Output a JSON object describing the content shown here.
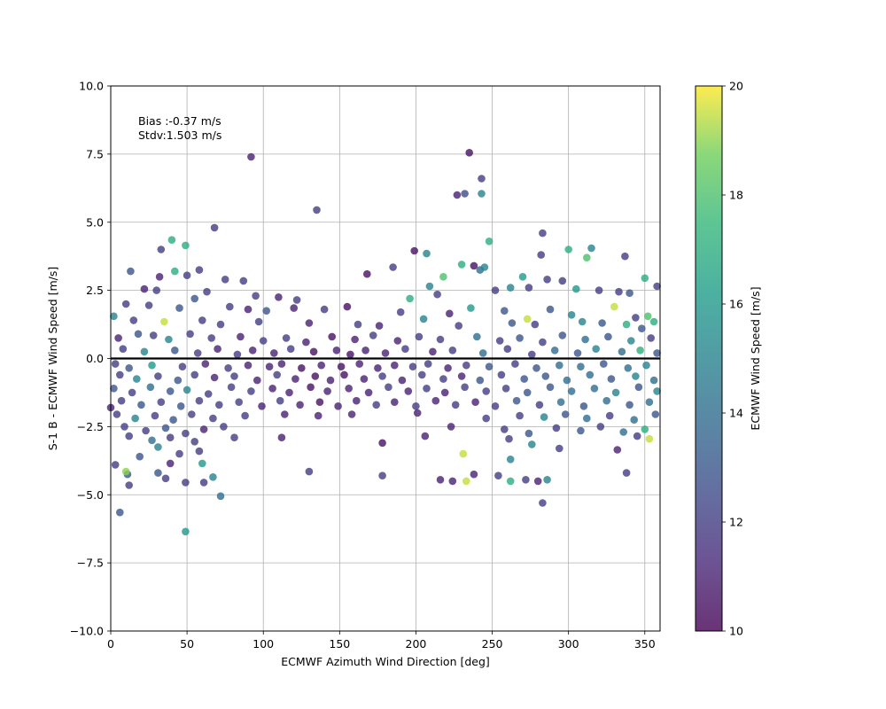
{
  "chart_data": {
    "type": "scatter",
    "xlabel": "ECMWF Azimuth Wind Direction [deg]",
    "ylabel": "S-1 B - ECMWF Wind Speed [m/s]",
    "xlim": [
      0,
      360
    ],
    "ylim": [
      -10,
      10
    ],
    "xticks": [
      0,
      50,
      100,
      150,
      200,
      250,
      300,
      350
    ],
    "yticks": [
      -10.0,
      -7.5,
      -5.0,
      -2.5,
      0.0,
      2.5,
      5.0,
      7.5,
      10.0
    ],
    "xtick_labels": [
      "0",
      "50",
      "100",
      "150",
      "200",
      "250",
      "300",
      "350"
    ],
    "ytick_labels": [
      "−10.0",
      "−7.5",
      "−5.0",
      "−2.5",
      "0.0",
      "2.5",
      "5.0",
      "7.5",
      "10.0"
    ],
    "grid": true,
    "zero_line": 0,
    "annotation": [
      "Bias :-0.37 m/s",
      "Stdv:1.503 m/s"
    ],
    "colorbar": {
      "label": "ECMWF Wind Speed [m/s]",
      "min": 10,
      "max": 20,
      "ticks": [
        10,
        12,
        14,
        16,
        18,
        20
      ],
      "colormap": "viridis",
      "alpha": 0.8
    },
    "points": [
      [
        92,
        7.4,
        11
      ],
      [
        235,
        7.55,
        10.5
      ],
      [
        243,
        6.6,
        12
      ],
      [
        232,
        6.05,
        12.5
      ],
      [
        227,
        6.0,
        11
      ],
      [
        243,
        6.05,
        15
      ],
      [
        135,
        5.45,
        12
      ],
      [
        68,
        4.8,
        12
      ],
      [
        283,
        4.6,
        12
      ],
      [
        248,
        4.3,
        17
      ],
      [
        40,
        4.35,
        17
      ],
      [
        49,
        4.15,
        17
      ],
      [
        33,
        4.0,
        12
      ],
      [
        199,
        3.95,
        10.5
      ],
      [
        300,
        4.0,
        17
      ],
      [
        315,
        4.05,
        15
      ],
      [
        337,
        3.75,
        12
      ],
      [
        282,
        3.8,
        12
      ],
      [
        312,
        3.7,
        18
      ],
      [
        207,
        3.85,
        15
      ],
      [
        185,
        3.35,
        12
      ],
      [
        230,
        3.45,
        17
      ],
      [
        238,
        3.4,
        10.5
      ],
      [
        242,
        3.25,
        14
      ],
      [
        245,
        3.35,
        15
      ],
      [
        58,
        3.25,
        12
      ],
      [
        42,
        3.2,
        17
      ],
      [
        13,
        3.2,
        13
      ],
      [
        32,
        3.0,
        11
      ],
      [
        168,
        3.1,
        10.5
      ],
      [
        218,
        3.0,
        18
      ],
      [
        50,
        3.05,
        12
      ],
      [
        75,
        2.9,
        12
      ],
      [
        87,
        2.85,
        12
      ],
      [
        270,
        3.0,
        16
      ],
      [
        286,
        2.9,
        12
      ],
      [
        296,
        2.85,
        12
      ],
      [
        350,
        2.95,
        17
      ],
      [
        358,
        2.65,
        12
      ],
      [
        22,
        2.55,
        11
      ],
      [
        30,
        2.5,
        12
      ],
      [
        55,
        2.2,
        13
      ],
      [
        63,
        2.45,
        12
      ],
      [
        95,
        2.3,
        12
      ],
      [
        110,
        2.25,
        11
      ],
      [
        122,
        2.15,
        12
      ],
      [
        196,
        2.2,
        17
      ],
      [
        209,
        2.65,
        15
      ],
      [
        214,
        2.35,
        12
      ],
      [
        252,
        2.5,
        12
      ],
      [
        262,
        2.6,
        15
      ],
      [
        274,
        2.6,
        12
      ],
      [
        305,
        2.55,
        16
      ],
      [
        320,
        2.5,
        12
      ],
      [
        333,
        2.45,
        12
      ],
      [
        340,
        2.4,
        13
      ],
      [
        10,
        2.0,
        12
      ],
      [
        25,
        1.95,
        12
      ],
      [
        45,
        1.85,
        13
      ],
      [
        78,
        1.9,
        12
      ],
      [
        90,
        1.8,
        11
      ],
      [
        102,
        1.75,
        13
      ],
      [
        120,
        1.85,
        11
      ],
      [
        140,
        1.8,
        12
      ],
      [
        155,
        1.9,
        10.5
      ],
      [
        190,
        1.7,
        12
      ],
      [
        222,
        1.65,
        11
      ],
      [
        236,
        1.85,
        16
      ],
      [
        258,
        1.75,
        13
      ],
      [
        273,
        1.45,
        19.5
      ],
      [
        288,
        1.8,
        13
      ],
      [
        302,
        1.6,
        15
      ],
      [
        330,
        1.9,
        19.5
      ],
      [
        344,
        1.5,
        12
      ],
      [
        352,
        1.55,
        18
      ],
      [
        2,
        1.55,
        15
      ],
      [
        15,
        1.4,
        12
      ],
      [
        35,
        1.35,
        19.5
      ],
      [
        60,
        1.4,
        12
      ],
      [
        72,
        1.25,
        12
      ],
      [
        97,
        1.35,
        12
      ],
      [
        130,
        1.3,
        11
      ],
      [
        162,
        1.25,
        12
      ],
      [
        176,
        1.2,
        11
      ],
      [
        205,
        1.45,
        15
      ],
      [
        228,
        1.2,
        12
      ],
      [
        263,
        1.3,
        13
      ],
      [
        278,
        1.25,
        12
      ],
      [
        309,
        1.35,
        15
      ],
      [
        322,
        1.3,
        13
      ],
      [
        338,
        1.25,
        17
      ],
      [
        348,
        1.1,
        13
      ],
      [
        356,
        1.35,
        17
      ],
      [
        5,
        0.75,
        11
      ],
      [
        18,
        0.9,
        13
      ],
      [
        28,
        0.85,
        12
      ],
      [
        38,
        0.7,
        15
      ],
      [
        52,
        0.9,
        12
      ],
      [
        66,
        0.75,
        12
      ],
      [
        85,
        0.8,
        11
      ],
      [
        100,
        0.65,
        12
      ],
      [
        115,
        0.75,
        12
      ],
      [
        128,
        0.6,
        11
      ],
      [
        145,
        0.8,
        10.5
      ],
      [
        160,
        0.7,
        11
      ],
      [
        172,
        0.85,
        12
      ],
      [
        188,
        0.65,
        11
      ],
      [
        202,
        0.8,
        12
      ],
      [
        216,
        0.7,
        12
      ],
      [
        240,
        0.8,
        14
      ],
      [
        255,
        0.65,
        12
      ],
      [
        268,
        0.75,
        13
      ],
      [
        283,
        0.6,
        12
      ],
      [
        296,
        0.85,
        13
      ],
      [
        311,
        0.7,
        14
      ],
      [
        326,
        0.8,
        13
      ],
      [
        341,
        0.65,
        15
      ],
      [
        354,
        0.75,
        12
      ],
      [
        8,
        0.35,
        12
      ],
      [
        22,
        0.25,
        15
      ],
      [
        42,
        0.3,
        13
      ],
      [
        57,
        0.2,
        12
      ],
      [
        70,
        0.35,
        11
      ],
      [
        83,
        0.15,
        12
      ],
      [
        93,
        0.3,
        11
      ],
      [
        107,
        0.2,
        11
      ],
      [
        118,
        0.35,
        12
      ],
      [
        133,
        0.25,
        10.5
      ],
      [
        148,
        0.3,
        11
      ],
      [
        157,
        0.15,
        10.5
      ],
      [
        167,
        0.3,
        11
      ],
      [
        180,
        0.2,
        11
      ],
      [
        193,
        0.35,
        12
      ],
      [
        211,
        0.25,
        11
      ],
      [
        224,
        0.3,
        12
      ],
      [
        244,
        0.2,
        14
      ],
      [
        260,
        0.35,
        12
      ],
      [
        276,
        0.15,
        12
      ],
      [
        291,
        0.3,
        14
      ],
      [
        306,
        0.2,
        13
      ],
      [
        318,
        0.35,
        15
      ],
      [
        335,
        0.25,
        14
      ],
      [
        347,
        0.3,
        17
      ],
      [
        358,
        0.2,
        13
      ],
      [
        3,
        -0.2,
        12
      ],
      [
        12,
        -0.35,
        13
      ],
      [
        27,
        -0.25,
        16
      ],
      [
        47,
        -0.3,
        12
      ],
      [
        62,
        -0.2,
        11
      ],
      [
        77,
        -0.35,
        12
      ],
      [
        90,
        -0.25,
        11
      ],
      [
        104,
        -0.3,
        11
      ],
      [
        112,
        -0.2,
        11
      ],
      [
        125,
        -0.35,
        10.5
      ],
      [
        138,
        -0.25,
        11
      ],
      [
        151,
        -0.3,
        10.5
      ],
      [
        163,
        -0.2,
        11
      ],
      [
        175,
        -0.35,
        11
      ],
      [
        186,
        -0.25,
        11
      ],
      [
        198,
        -0.3,
        12
      ],
      [
        208,
        -0.2,
        12
      ],
      [
        221,
        -0.35,
        11
      ],
      [
        233,
        -0.25,
        12
      ],
      [
        248,
        -0.3,
        13
      ],
      [
        265,
        -0.2,
        12
      ],
      [
        279,
        -0.35,
        13
      ],
      [
        294,
        -0.25,
        14
      ],
      [
        308,
        -0.3,
        14
      ],
      [
        323,
        -0.2,
        13
      ],
      [
        339,
        -0.35,
        14
      ],
      [
        351,
        -0.25,
        15
      ],
      [
        6,
        -0.6,
        12
      ],
      [
        17,
        -0.75,
        15
      ],
      [
        31,
        -0.65,
        12
      ],
      [
        44,
        -0.8,
        13
      ],
      [
        55,
        -0.6,
        12
      ],
      [
        68,
        -0.7,
        11
      ],
      [
        81,
        -0.65,
        12
      ],
      [
        96,
        -0.8,
        11
      ],
      [
        109,
        -0.6,
        12
      ],
      [
        121,
        -0.75,
        11
      ],
      [
        134,
        -0.65,
        10.5
      ],
      [
        144,
        -0.8,
        11
      ],
      [
        153,
        -0.6,
        10.5
      ],
      [
        166,
        -0.75,
        11
      ],
      [
        178,
        -0.65,
        12
      ],
      [
        191,
        -0.8,
        11
      ],
      [
        204,
        -0.6,
        12
      ],
      [
        218,
        -0.75,
        12
      ],
      [
        230,
        -0.65,
        11
      ],
      [
        242,
        -0.8,
        13
      ],
      [
        256,
        -0.6,
        12
      ],
      [
        271,
        -0.75,
        13
      ],
      [
        285,
        -0.65,
        13
      ],
      [
        299,
        -0.8,
        14
      ],
      [
        314,
        -0.6,
        14
      ],
      [
        328,
        -0.75,
        13
      ],
      [
        344,
        -0.65,
        15
      ],
      [
        356,
        -0.8,
        14
      ],
      [
        2,
        -1.1,
        13
      ],
      [
        14,
        -1.25,
        12
      ],
      [
        26,
        -1.05,
        14
      ],
      [
        39,
        -1.2,
        13
      ],
      [
        50,
        -1.15,
        15
      ],
      [
        64,
        -1.3,
        12
      ],
      [
        79,
        -1.05,
        12
      ],
      [
        92,
        -1.2,
        12
      ],
      [
        106,
        -1.1,
        11
      ],
      [
        117,
        -1.25,
        11
      ],
      [
        131,
        -1.05,
        10.5
      ],
      [
        142,
        -1.2,
        11
      ],
      [
        156,
        -1.1,
        11
      ],
      [
        169,
        -1.25,
        11
      ],
      [
        182,
        -1.05,
        12
      ],
      [
        195,
        -1.2,
        11
      ],
      [
        207,
        -1.1,
        12
      ],
      [
        219,
        -1.25,
        11
      ],
      [
        232,
        -1.05,
        12
      ],
      [
        246,
        -1.2,
        12
      ],
      [
        259,
        -1.1,
        12
      ],
      [
        273,
        -1.25,
        13
      ],
      [
        288,
        -1.05,
        13
      ],
      [
        302,
        -1.2,
        14
      ],
      [
        317,
        -1.1,
        14
      ],
      [
        331,
        -1.25,
        15
      ],
      [
        346,
        -1.05,
        13
      ],
      [
        358,
        -1.2,
        15
      ],
      [
        7,
        -1.55,
        12
      ],
      [
        20,
        -1.7,
        13
      ],
      [
        33,
        -1.6,
        12
      ],
      [
        46,
        -1.75,
        13
      ],
      [
        58,
        -1.55,
        12
      ],
      [
        71,
        -1.7,
        12
      ],
      [
        84,
        -1.6,
        12
      ],
      [
        99,
        -1.75,
        11
      ],
      [
        111,
        -1.55,
        12
      ],
      [
        124,
        -1.7,
        11
      ],
      [
        137,
        -1.6,
        10.5
      ],
      [
        149,
        -1.75,
        11
      ],
      [
        161,
        -1.55,
        11
      ],
      [
        174,
        -1.7,
        12
      ],
      [
        186,
        -1.6,
        11
      ],
      [
        200,
        -1.75,
        12
      ],
      [
        213,
        -1.55,
        11
      ],
      [
        226,
        -1.7,
        12
      ],
      [
        239,
        -1.6,
        11
      ],
      [
        252,
        -1.75,
        12
      ],
      [
        266,
        -1.55,
        13
      ],
      [
        281,
        -1.7,
        12
      ],
      [
        295,
        -1.6,
        14
      ],
      [
        310,
        -1.75,
        13
      ],
      [
        325,
        -1.55,
        14
      ],
      [
        340,
        -1.7,
        13
      ],
      [
        353,
        -1.6,
        14
      ],
      [
        4,
        -2.05,
        12
      ],
      [
        16,
        -2.2,
        15
      ],
      [
        29,
        -2.1,
        12
      ],
      [
        41,
        -2.25,
        13
      ],
      [
        53,
        -2.05,
        12
      ],
      [
        67,
        -2.2,
        12
      ],
      [
        88,
        -2.1,
        12
      ],
      [
        114,
        -2.05,
        11
      ],
      [
        136,
        -2.1,
        11
      ],
      [
        158,
        -2.05,
        11
      ],
      [
        201,
        -2.0,
        11
      ],
      [
        246,
        -2.2,
        12
      ],
      [
        268,
        -2.1,
        12
      ],
      [
        284,
        -2.15,
        15
      ],
      [
        298,
        -2.05,
        13
      ],
      [
        312,
        -2.2,
        14
      ],
      [
        327,
        -2.1,
        12
      ],
      [
        343,
        -2.25,
        14
      ],
      [
        357,
        -2.05,
        13
      ],
      [
        9,
        -2.5,
        12
      ],
      [
        23,
        -2.65,
        12
      ],
      [
        36,
        -2.55,
        13
      ],
      [
        49,
        -2.75,
        12
      ],
      [
        61,
        -2.6,
        11
      ],
      [
        74,
        -2.5,
        12
      ],
      [
        223,
        -2.5,
        11
      ],
      [
        258,
        -2.6,
        12
      ],
      [
        274,
        -2.75,
        13
      ],
      [
        292,
        -2.55,
        12
      ],
      [
        308,
        -2.65,
        13
      ],
      [
        321,
        -2.5,
        12
      ],
      [
        336,
        -2.7,
        14
      ],
      [
        350,
        -2.6,
        17
      ],
      [
        12,
        -2.85,
        12
      ],
      [
        27,
        -3.0,
        14
      ],
      [
        39,
        -2.9,
        12
      ],
      [
        55,
        -3.05,
        12
      ],
      [
        81,
        -2.9,
        12
      ],
      [
        112,
        -2.9,
        11
      ],
      [
        178,
        -3.1,
        10.5
      ],
      [
        206,
        -2.85,
        11
      ],
      [
        261,
        -2.95,
        12
      ],
      [
        276,
        -3.15,
        15
      ],
      [
        294,
        -3.3,
        12
      ],
      [
        332,
        -3.35,
        11
      ],
      [
        345,
        -2.85,
        12
      ],
      [
        353,
        -2.95,
        19.5
      ],
      [
        31,
        -3.25,
        15
      ],
      [
        58,
        -3.4,
        12
      ],
      [
        19,
        -3.6,
        13
      ],
      [
        45,
        -3.5,
        12
      ],
      [
        262,
        -3.7,
        15
      ],
      [
        60,
        -3.85,
        16
      ],
      [
        39,
        -3.85,
        11
      ],
      [
        11,
        -4.25,
        13
      ],
      [
        31,
        -4.2,
        13
      ],
      [
        36,
        -4.4,
        12
      ],
      [
        3,
        -3.9,
        12
      ],
      [
        130,
        -4.15,
        12
      ],
      [
        178,
        -4.3,
        12
      ],
      [
        216,
        -4.45,
        11
      ],
      [
        224,
        -4.5,
        11
      ],
      [
        233,
        -4.5,
        19.5
      ],
      [
        231,
        -3.5,
        19.5
      ],
      [
        238,
        -4.25,
        11
      ],
      [
        254,
        -4.3,
        12
      ],
      [
        262,
        -4.5,
        17
      ],
      [
        272,
        -4.45,
        12
      ],
      [
        280,
        -4.5,
        11
      ],
      [
        286,
        -4.45,
        15
      ],
      [
        338,
        -4.2,
        12
      ],
      [
        12,
        -4.65,
        12
      ],
      [
        49,
        -4.55,
        12
      ],
      [
        61,
        -4.55,
        12
      ],
      [
        67,
        -4.35,
        15
      ],
      [
        72,
        -5.05,
        14
      ],
      [
        283,
        -5.3,
        12
      ],
      [
        6,
        -5.65,
        13
      ],
      [
        49,
        -6.35,
        16
      ],
      [
        10,
        -4.15,
        19
      ],
      [
        0,
        -1.8,
        11
      ]
    ]
  }
}
